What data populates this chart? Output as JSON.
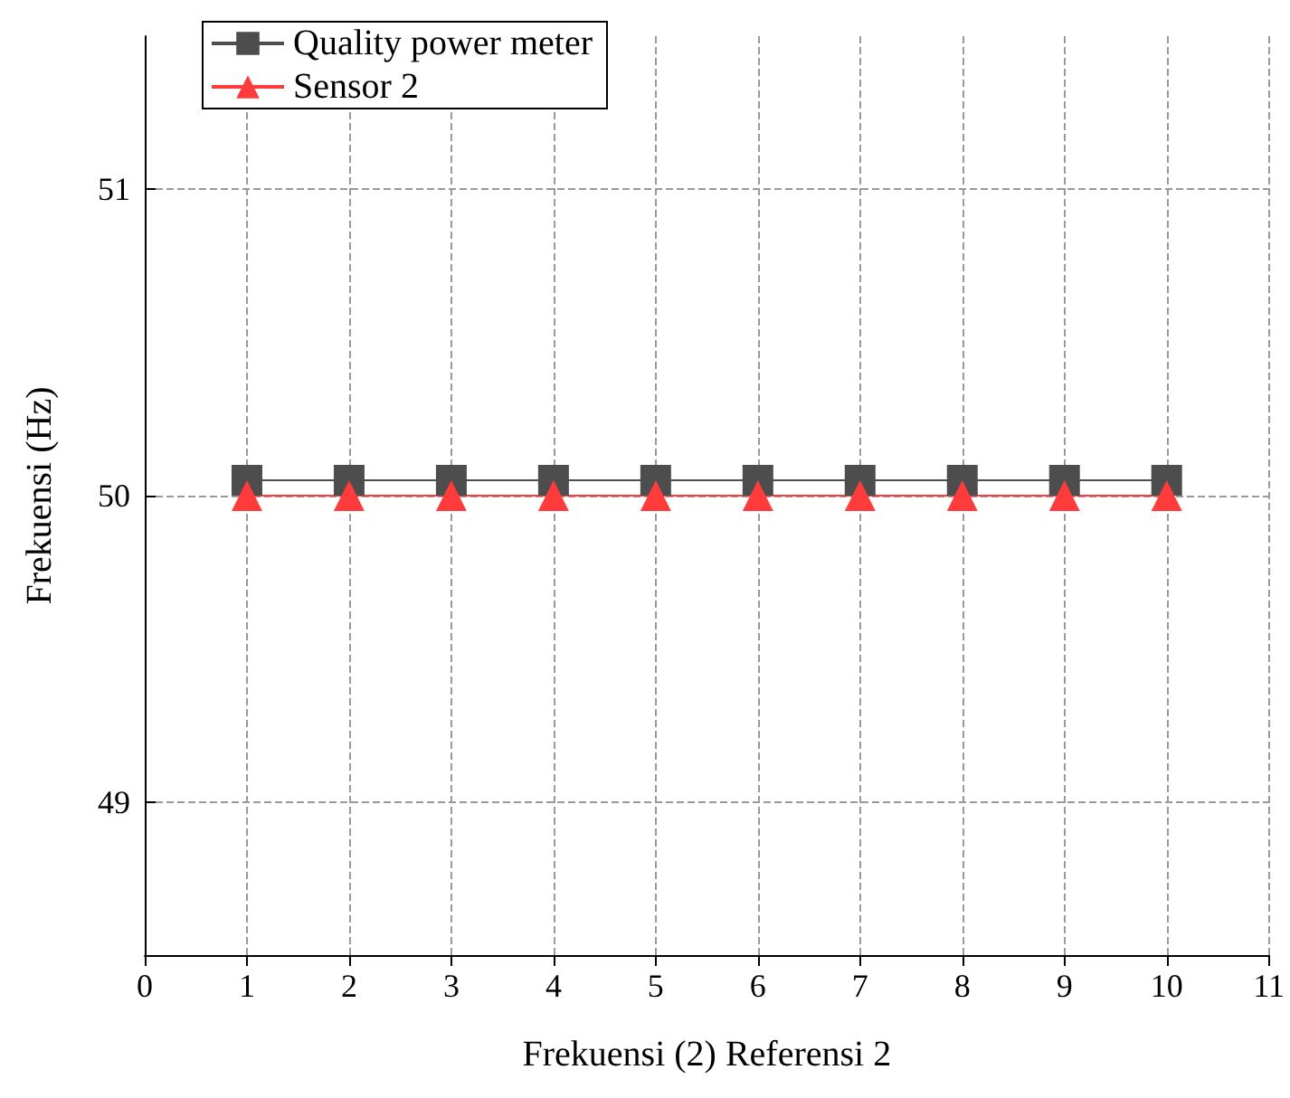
{
  "chart_data": {
    "type": "line",
    "xlabel": "Frekuensi (2) Referensi 2",
    "ylabel": "Frekuensi (Hz)",
    "x": [
      1,
      2,
      3,
      4,
      5,
      6,
      7,
      8,
      9,
      10
    ],
    "series": [
      {
        "name": "Quality power meter",
        "color": "#4d4d4d",
        "marker": "square",
        "values": [
          50.05,
          50.05,
          50.05,
          50.05,
          50.05,
          50.05,
          50.05,
          50.05,
          50.05,
          50.05
        ]
      },
      {
        "name": "Sensor 2",
        "color": "#ff3b3b",
        "marker": "triangle",
        "values": [
          50,
          50,
          50,
          50,
          50,
          50,
          50,
          50,
          50,
          50
        ]
      }
    ],
    "xlim": [
      0,
      11
    ],
    "xticks": [
      0,
      1,
      2,
      3,
      4,
      5,
      6,
      7,
      8,
      9,
      10,
      11
    ],
    "ylim": [
      48.5,
      51.5
    ],
    "yticks": [
      49,
      50,
      51
    ],
    "grid": true,
    "legend": "top left",
    "line_style": "solid"
  }
}
